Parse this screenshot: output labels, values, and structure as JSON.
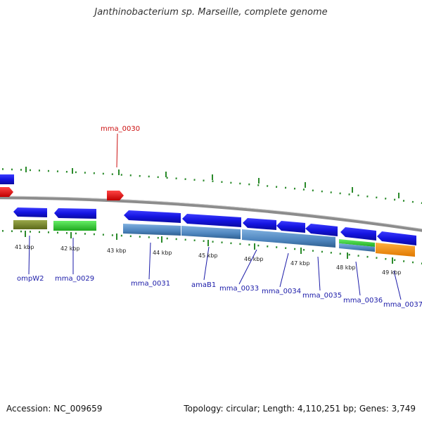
{
  "title": "Janthinobacterium sp. Marseille, complete genome",
  "footer": {
    "accession": "Accession: NC_009659",
    "summary": "Topology: circular; Length: 4,110,251 bp; Genes: 3,749"
  },
  "colors": {
    "forward_gene": "#1a1ae6",
    "reverse_gene": "#ee1111",
    "label_blue": "#1a1aa8",
    "label_red": "#cc1111",
    "tick": "#2a8a2a",
    "backbone": "#808080",
    "olive": "#7a8a2a",
    "green": "#33cc33",
    "steelblue": "#5a8fc4",
    "orange": "#ff9911"
  },
  "scale_labels": [
    "41 kbp",
    "42 kbp",
    "43 kbp",
    "44 kbp",
    "45 kbp",
    "46 kbp",
    "47 kbp",
    "48 kbp",
    "49 kbp"
  ],
  "gene_labels": [
    {
      "text": "ompW2",
      "color": "blue"
    },
    {
      "text": "mma_0029",
      "color": "blue"
    },
    {
      "text": "mma_0030",
      "color": "red"
    },
    {
      "text": "mma_0031",
      "color": "blue"
    },
    {
      "text": "amaB1",
      "color": "blue"
    },
    {
      "text": "mma_0033",
      "color": "blue"
    },
    {
      "text": "mma_0034",
      "color": "blue"
    },
    {
      "text": "mma_0035",
      "color": "blue"
    },
    {
      "text": "mma_0036",
      "color": "blue"
    },
    {
      "text": "mma_0037",
      "color": "blue"
    }
  ]
}
